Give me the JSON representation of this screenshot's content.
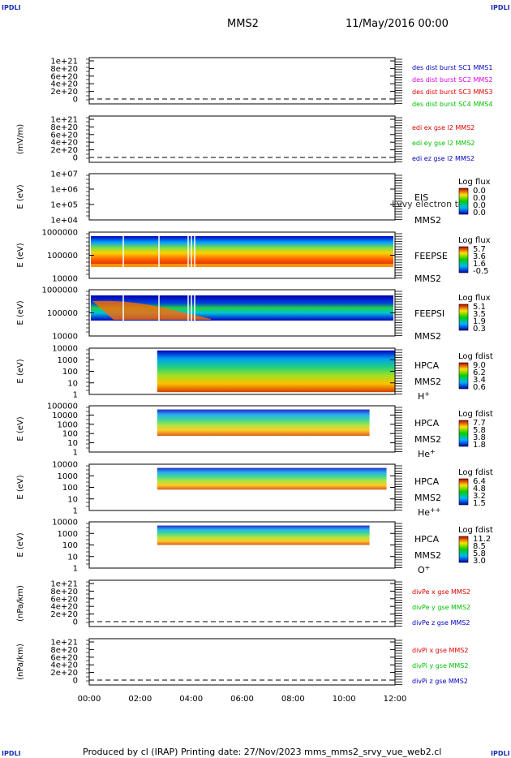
{
  "corners": {
    "tl": "IPDLI",
    "tr": "IPDLI",
    "bl": "IPDLI",
    "br": "IPDLI"
  },
  "header": {
    "spacecraft": "MMS2",
    "date": "11/May/2016 00:00"
  },
  "footer": {
    "text": "Produced by cl (IRAP)   Printing date: 27/Nov/2023   mms_mms2_srvy_vue_web2.cl"
  },
  "time_axis": {
    "ticks": [
      "00:00",
      "02:00",
      "04:00",
      "06:00",
      "08:00",
      "10:00",
      "12:00"
    ]
  },
  "colors": {
    "red": "#e00000",
    "magenta": "#e000e0",
    "green": "#00c000",
    "blue": "#0000c0",
    "spectral_low": "#0000c0",
    "spectral_high": "#c00000"
  },
  "chart_data": [
    {
      "type": "line",
      "ylabel": "",
      "yticks": [
        "1e+21",
        "8e+20",
        "6e+20",
        "4e+20",
        "2e+20",
        "0"
      ],
      "legend": [
        {
          "text": "des dist burst SC1 MMS1",
          "color": "#0000c0"
        },
        {
          "text": "des dist burst SC2 MMS2",
          "color": "#e000e0"
        },
        {
          "text": "des dist burst SC3 MMS3",
          "color": "#e00000"
        },
        {
          "text": "des dist burst SC4 MMS4",
          "color": "#00c000"
        }
      ],
      "series": []
    },
    {
      "type": "line",
      "ylabel": "(mV/m)",
      "yticks": [
        "1e+21",
        "8e+20",
        "6e+20",
        "4e+20",
        "2e+20",
        "0"
      ],
      "legend": [
        {
          "text": "edi ex gse l2 MMS2",
          "color": "#e00000"
        },
        {
          "text": "edi ey gse l2 MMS2",
          "color": "#00c000"
        },
        {
          "text": "edi ez gse l2 MMS2",
          "color": "#0000c0"
        }
      ],
      "series": []
    },
    {
      "type": "heatmap",
      "ylabel": "E (eV)",
      "yticks": [
        "1e+07",
        "1e+06",
        "1e+05",
        "1e+04"
      ],
      "label": [
        "EIS",
        "MMS2"
      ],
      "overlay_text": "Lvvy electron to",
      "colorbar_title": "Log flux",
      "colorbar_ticks": [
        "0.0",
        "0.0",
        "0.0",
        "0.0"
      ],
      "data_extent": null
    },
    {
      "type": "heatmap",
      "ylabel": "E (eV)",
      "yticks": [
        "1000000",
        "100000",
        "10000"
      ],
      "label": [
        "FEEPSE",
        "MMS2"
      ],
      "colorbar_title": "Log flux",
      "colorbar_ticks": [
        "5.7",
        "3.6",
        "1.6",
        "-0.5"
      ],
      "data_extent": {
        "t_start": "00:00",
        "t_end": "12:00"
      }
    },
    {
      "type": "heatmap",
      "ylabel": "E (eV)",
      "yticks": [
        "1000000",
        "100000",
        "10000"
      ],
      "label": [
        "FEEPSI",
        "MMS2"
      ],
      "colorbar_title": "Log flux",
      "colorbar_ticks": [
        "5.1",
        "3.5",
        "1.9",
        "0.3"
      ],
      "data_extent": {
        "t_start": "00:00",
        "t_end": "12:00"
      }
    },
    {
      "type": "heatmap",
      "ylabel": "E (eV)",
      "yticks": [
        "10000",
        "1000",
        "100",
        "10",
        "1"
      ],
      "label": [
        "HPCA",
        "MMS2",
        "H",
        "+"
      ],
      "colorbar_title": "Log fdist",
      "colorbar_ticks": [
        "9.0",
        "6.2",
        "3.4",
        "0.6"
      ],
      "data_extent": {
        "t_start": "02:40",
        "t_end": "12:00"
      }
    },
    {
      "type": "heatmap",
      "ylabel": "E (eV)",
      "yticks": [
        "100000",
        "10000",
        "1000",
        "100",
        "10",
        "1"
      ],
      "label": [
        "HPCA",
        "MMS2",
        "He",
        "+"
      ],
      "colorbar_title": "Log fdist",
      "colorbar_ticks": [
        "7.7",
        "5.8",
        "3.8",
        "1.8"
      ],
      "data_extent": {
        "t_start": "02:40",
        "t_end": "11:00"
      }
    },
    {
      "type": "heatmap",
      "ylabel": "E (eV)",
      "yticks": [
        "10000",
        "1000",
        "100",
        "10",
        "1"
      ],
      "label": [
        "HPCA",
        "MMS2",
        "He",
        "++"
      ],
      "colorbar_title": "Log fdist",
      "colorbar_ticks": [
        "6.4",
        "4.8",
        "3.2",
        "1.5"
      ],
      "data_extent": {
        "t_start": "02:40",
        "t_end": "11:40"
      }
    },
    {
      "type": "heatmap",
      "ylabel": "E (eV)",
      "yticks": [
        "10000",
        "1000",
        "100",
        "10",
        "1"
      ],
      "label": [
        "HPCA",
        "MMS2",
        "O",
        "+"
      ],
      "colorbar_title": "Log fdist",
      "colorbar_ticks": [
        "11.2",
        "8.5",
        "5.8",
        "3.0"
      ],
      "data_extent": {
        "t_start": "02:40",
        "t_end": "11:00"
      }
    },
    {
      "type": "line",
      "ylabel": "(nPa/km)",
      "yticks": [
        "1e+21",
        "8e+20",
        "6e+20",
        "4e+20",
        "2e+20",
        "0"
      ],
      "legend": [
        {
          "text": "divPe x gse MMS2",
          "color": "#e00000"
        },
        {
          "text": "divPe y gse MMS2",
          "color": "#00c000"
        },
        {
          "text": "divPe z gse MMS2",
          "color": "#0000c0"
        }
      ],
      "series": []
    },
    {
      "type": "line",
      "ylabel": "(nPa/km)",
      "yticks": [
        "1e+21",
        "8e+20",
        "6e+20",
        "4e+20",
        "2e+20",
        "0"
      ],
      "legend": [
        {
          "text": "divPi x gse MMS2",
          "color": "#e00000"
        },
        {
          "text": "divPi y gse MMS2",
          "color": "#00c000"
        },
        {
          "text": "divPi z gse MMS2",
          "color": "#0000c0"
        }
      ],
      "series": []
    }
  ]
}
